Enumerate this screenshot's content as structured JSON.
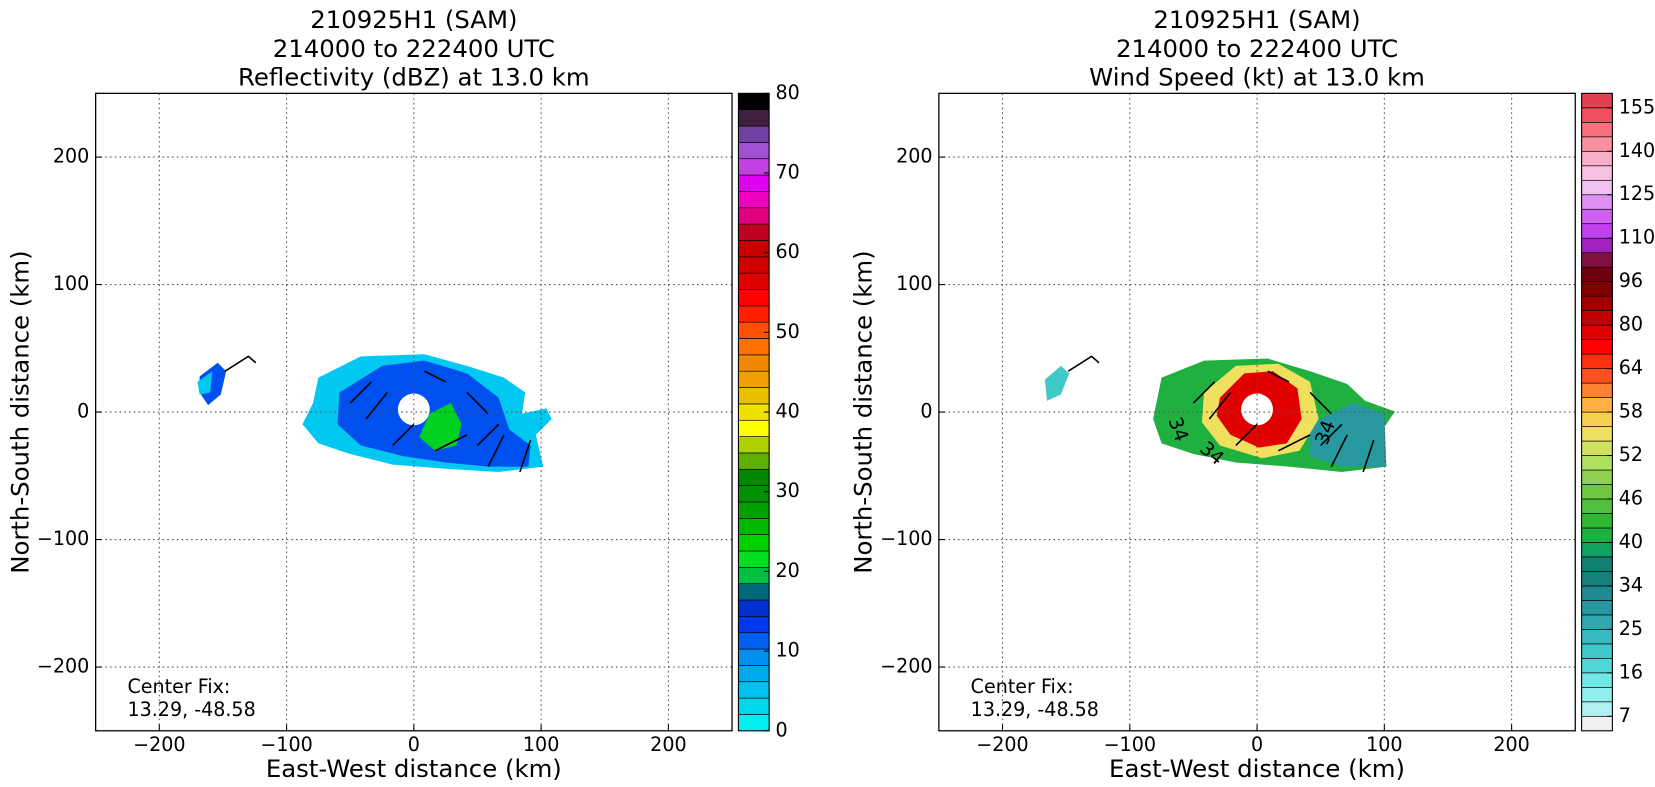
{
  "chart_data": [
    {
      "type": "heatmap",
      "title": [
        "210925H1 (SAM)",
        "214000 to 222400 UTC",
        "Reflectivity (dBZ) at 13.0 km"
      ],
      "xlabel": "East-West distance (km)",
      "ylabel": "North-South distance (km)",
      "xlim": [
        -250,
        250
      ],
      "ylim": [
        -250,
        250
      ],
      "xticks": [
        {
          "value": -200,
          "label": "−200"
        },
        {
          "value": -100,
          "label": "−100"
        },
        0,
        100,
        200
      ],
      "yticks": [
        {
          "value": -200,
          "label": "−200"
        },
        {
          "value": -100,
          "label": "−100"
        },
        0,
        100,
        200
      ],
      "grid": true,
      "annotation": [
        "Center Fix:",
        "13.29, -48.58"
      ],
      "colorbar": {
        "clim": [
          0,
          80
        ],
        "ticks": [
          0,
          10,
          20,
          30,
          40,
          50,
          60,
          70,
          80
        ],
        "colors": [
          "#00f0f0",
          "#00d8e8",
          "#00c0f0",
          "#00a8f0",
          "#0090f0",
          "#0060f0",
          "#0038f0",
          "#0030d0",
          "#006878",
          "#00c040",
          "#00e020",
          "#00d000",
          "#00b800",
          "#00a000",
          "#009000",
          "#008800",
          "#60b000",
          "#b0d000",
          "#ffff00",
          "#f0e000",
          "#e8c000",
          "#f0a000",
          "#f08800",
          "#ff7000",
          "#ff5000",
          "#ff2000",
          "#ff0000",
          "#e00000",
          "#d00000",
          "#c80000",
          "#c00020",
          "#e00080",
          "#f000c0",
          "#e000f0",
          "#c040e0",
          "#a050d0",
          "#7040a0",
          "#402040",
          "#000000"
        ]
      }
    },
    {
      "type": "heatmap",
      "title": [
        "210925H1 (SAM)",
        "214000 to 222400 UTC",
        "Wind Speed (kt) at 13.0 km"
      ],
      "xlabel": "East-West distance (km)",
      "ylabel": "North-South distance (km)",
      "xlim": [
        -250,
        250
      ],
      "ylim": [
        -250,
        250
      ],
      "xticks": [
        {
          "value": -200,
          "label": "−200"
        },
        {
          "value": -100,
          "label": "−100"
        },
        0,
        100,
        200
      ],
      "yticks": [
        {
          "value": -200,
          "label": "−200"
        },
        {
          "value": -100,
          "label": "−100"
        },
        0,
        100,
        200
      ],
      "grid": true,
      "annotation": [
        "Center Fix:",
        "13.29, -48.58"
      ],
      "contour_labels": [
        "34",
        "34",
        "34"
      ],
      "colorbar": {
        "ticks": [
          7,
          16,
          25,
          34,
          40,
          46,
          52,
          58,
          64,
          80,
          96,
          110,
          125,
          140,
          155
        ],
        "colors": [
          "#f0f0f0",
          "#b0f0f0",
          "#90f0f0",
          "#70e8e8",
          "#50d8d8",
          "#40c8c8",
          "#38b8c0",
          "#30a8b0",
          "#2898a0",
          "#208890",
          "#18807a",
          "#108070",
          "#10a060",
          "#20b040",
          "#30b830",
          "#50c040",
          "#70c840",
          "#90d050",
          "#b0e060",
          "#d0e060",
          "#f0e060",
          "#f8d050",
          "#ffb040",
          "#ff8030",
          "#ff5020",
          "#ff3010",
          "#ff0000",
          "#e00000",
          "#c00000",
          "#a00000",
          "#800000",
          "#700010",
          "#801040",
          "#a020c0",
          "#c040f0",
          "#d060f0",
          "#e090f0",
          "#f0c0f0",
          "#f8c0e0",
          "#f8b0c8",
          "#f890a0",
          "#f87080",
          "#f05060",
          "#e04050"
        ]
      }
    }
  ]
}
